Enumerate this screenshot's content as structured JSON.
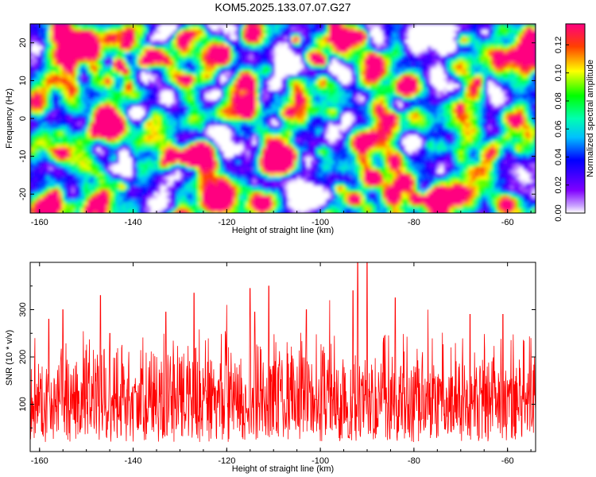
{
  "title": "KOM5.2025.133.07.07.G27",
  "chart_data": [
    {
      "type": "heatmap",
      "xlabel": "Height of straight line (km)",
      "ylabel": "Frequency (Hz)",
      "xlim": [
        -162,
        -54
      ],
      "ylim": [
        -25,
        25
      ],
      "xticks": [
        "-160",
        "-140",
        "-120",
        "-100",
        "-80",
        "-60"
      ],
      "yticks": [
        "-20",
        "-10",
        "0",
        "10",
        "20"
      ],
      "colorbar": {
        "label": "Normalized spectral amplitude",
        "range": [
          0,
          0.135
        ],
        "ticks": [
          "0.00",
          "0.02",
          "0.04",
          "0.06",
          "0.08",
          "0.10",
          "0.12"
        ],
        "colors": [
          "#ffffff",
          "#8000ff",
          "#0000ff",
          "#00ffff",
          "#00ff00",
          "#ffff00",
          "#ff0000",
          "#ff0080"
        ]
      },
      "colors": {
        "low": "#ffffff",
        "mid": "#0000ff",
        "high": "#ff0000"
      }
    },
    {
      "type": "line",
      "xlabel": "Height of straight line (km)",
      "ylabel": "SNR (10 * v/v)",
      "xlim": [
        -162,
        -54
      ],
      "ylim": [
        0,
        400
      ],
      "xticks": [
        "-160",
        "-140",
        "-120",
        "-100",
        "-80",
        "-60"
      ],
      "yticks": [
        "100",
        "200",
        "300"
      ],
      "series": [
        {
          "color": "#ff0000",
          "baseline_mean": 110,
          "noise_range": [
            20,
            230
          ],
          "peaks": [
            {
              "x": -161,
              "y": 240
            },
            {
              "x": -158,
              "y": 280
            },
            {
              "x": -155,
              "y": 300
            },
            {
              "x": -147,
              "y": 330
            },
            {
              "x": -145,
              "y": 250
            },
            {
              "x": -133,
              "y": 295
            },
            {
              "x": -127,
              "y": 335
            },
            {
              "x": -120,
              "y": 310
            },
            {
              "x": -115,
              "y": 345
            },
            {
              "x": -114,
              "y": 295
            },
            {
              "x": -111,
              "y": 350
            },
            {
              "x": -103,
              "y": 300
            },
            {
              "x": -98,
              "y": 320
            },
            {
              "x": -93,
              "y": 340
            },
            {
              "x": -92,
              "y": 400
            },
            {
              "x": -90,
              "y": 400
            },
            {
              "x": -84,
              "y": 325
            },
            {
              "x": -77,
              "y": 300
            },
            {
              "x": -68,
              "y": 290
            },
            {
              "x": -61,
              "y": 290
            },
            {
              "x": -55,
              "y": 240
            }
          ]
        }
      ]
    }
  ]
}
